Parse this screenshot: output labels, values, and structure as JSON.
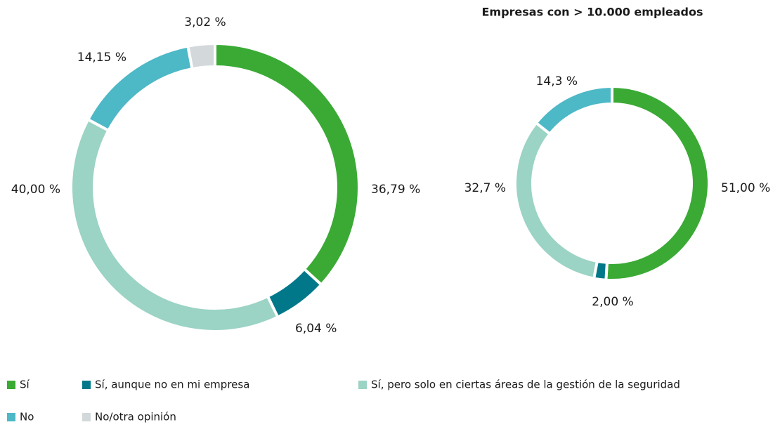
{
  "chart_data": [
    {
      "type": "donut",
      "categories": [
        "Sí",
        "Sí, aunque no en mi empresa",
        "Sí, pero solo en ciertas áreas de la gestión de la seguridad",
        "No",
        "No/otra opinión"
      ],
      "values": [
        36.79,
        6.04,
        40.0,
        14.15,
        3.02
      ],
      "value_labels": [
        "36,79 %",
        "6,04 %",
        "40,00 %",
        "14,15 %",
        "3,02 %"
      ],
      "colors": [
        "#3aaa35",
        "#00788a",
        "#9bd3c4",
        "#4db8c6",
        "#d3d8db"
      ]
    },
    {
      "type": "donut",
      "title": "Empresas con > 10.000 empleados",
      "values": [
        51.0,
        2.0,
        32.7,
        14.3
      ],
      "value_labels": [
        "51,00 %",
        "2,00 %",
        "32,7 %",
        "14,3 %"
      ],
      "colors": [
        "#3aaa35",
        "#00788a",
        "#9bd3c4",
        "#4db8c6"
      ]
    }
  ]
}
